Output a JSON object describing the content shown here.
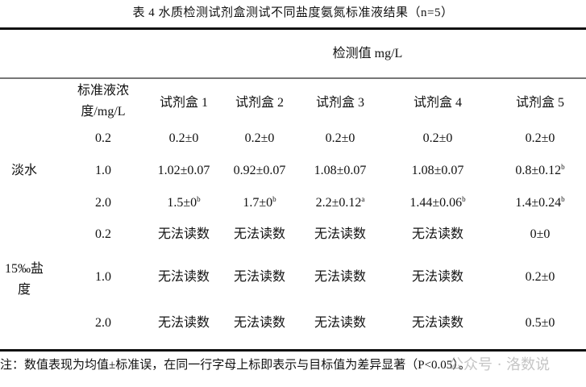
{
  "title": "表 4 水质检测试剂盒测试不同盐度氨氮标准液结果（n=5）",
  "header": {
    "group_label": "检测值 mg/L",
    "conc_label_line1": "标准液浓",
    "conc_label_line2": "度/mg/L",
    "kits": [
      "试剂盒 1",
      "试剂盒 2",
      "试剂盒 3",
      "试剂盒 4",
      "试剂盒 5"
    ]
  },
  "groups": [
    {
      "label": "淡水",
      "rows": [
        {
          "conc": "0.2",
          "cells": [
            {
              "v": "0.2±0",
              "s": ""
            },
            {
              "v": "0.2±0",
              "s": ""
            },
            {
              "v": "0.2±0",
              "s": ""
            },
            {
              "v": "0.2±0",
              "s": ""
            },
            {
              "v": "0.2±0",
              "s": ""
            }
          ]
        },
        {
          "conc": "1.0",
          "cells": [
            {
              "v": "1.02±0.07",
              "s": ""
            },
            {
              "v": "0.92±0.07",
              "s": ""
            },
            {
              "v": "1.08±0.07",
              "s": ""
            },
            {
              "v": "1.08±0.07",
              "s": ""
            },
            {
              "v": "0.8±0.12",
              "s": "b"
            }
          ]
        },
        {
          "conc": "2.0",
          "cells": [
            {
              "v": "1.5±0",
              "s": "b"
            },
            {
              "v": "1.7±0",
              "s": "b"
            },
            {
              "v": "2.2±0.12",
              "s": "a"
            },
            {
              "v": "1.44±0.06",
              "s": "b"
            },
            {
              "v": "1.4±0.24",
              "s": "b"
            }
          ]
        }
      ]
    },
    {
      "label_line1": "15‰盐",
      "label_line2": "度",
      "rows": [
        {
          "conc": "0.2",
          "cells": [
            {
              "v": "无法读数",
              "s": ""
            },
            {
              "v": "无法读数",
              "s": ""
            },
            {
              "v": "无法读数",
              "s": ""
            },
            {
              "v": "无法读数",
              "s": ""
            },
            {
              "v": "0±0",
              "s": ""
            }
          ]
        },
        {
          "conc": "1.0",
          "cells": [
            {
              "v": "无法读数",
              "s": ""
            },
            {
              "v": "无法读数",
              "s": ""
            },
            {
              "v": "无法读数",
              "s": ""
            },
            {
              "v": "无法读数",
              "s": ""
            },
            {
              "v": "0.2±0",
              "s": ""
            }
          ]
        },
        {
          "conc": "2.0",
          "cells": [
            {
              "v": "无法读数",
              "s": ""
            },
            {
              "v": "无法读数",
              "s": ""
            },
            {
              "v": "无法读数",
              "s": ""
            },
            {
              "v": "无法读数",
              "s": ""
            },
            {
              "v": "0.5±0",
              "s": ""
            }
          ]
        }
      ]
    }
  ],
  "note": "注：数值表现为均值±标准误，在同一行字母上标即表示与目标值为差异显著（P<0.05）。",
  "watermark": "公众号 · 洛数说"
}
